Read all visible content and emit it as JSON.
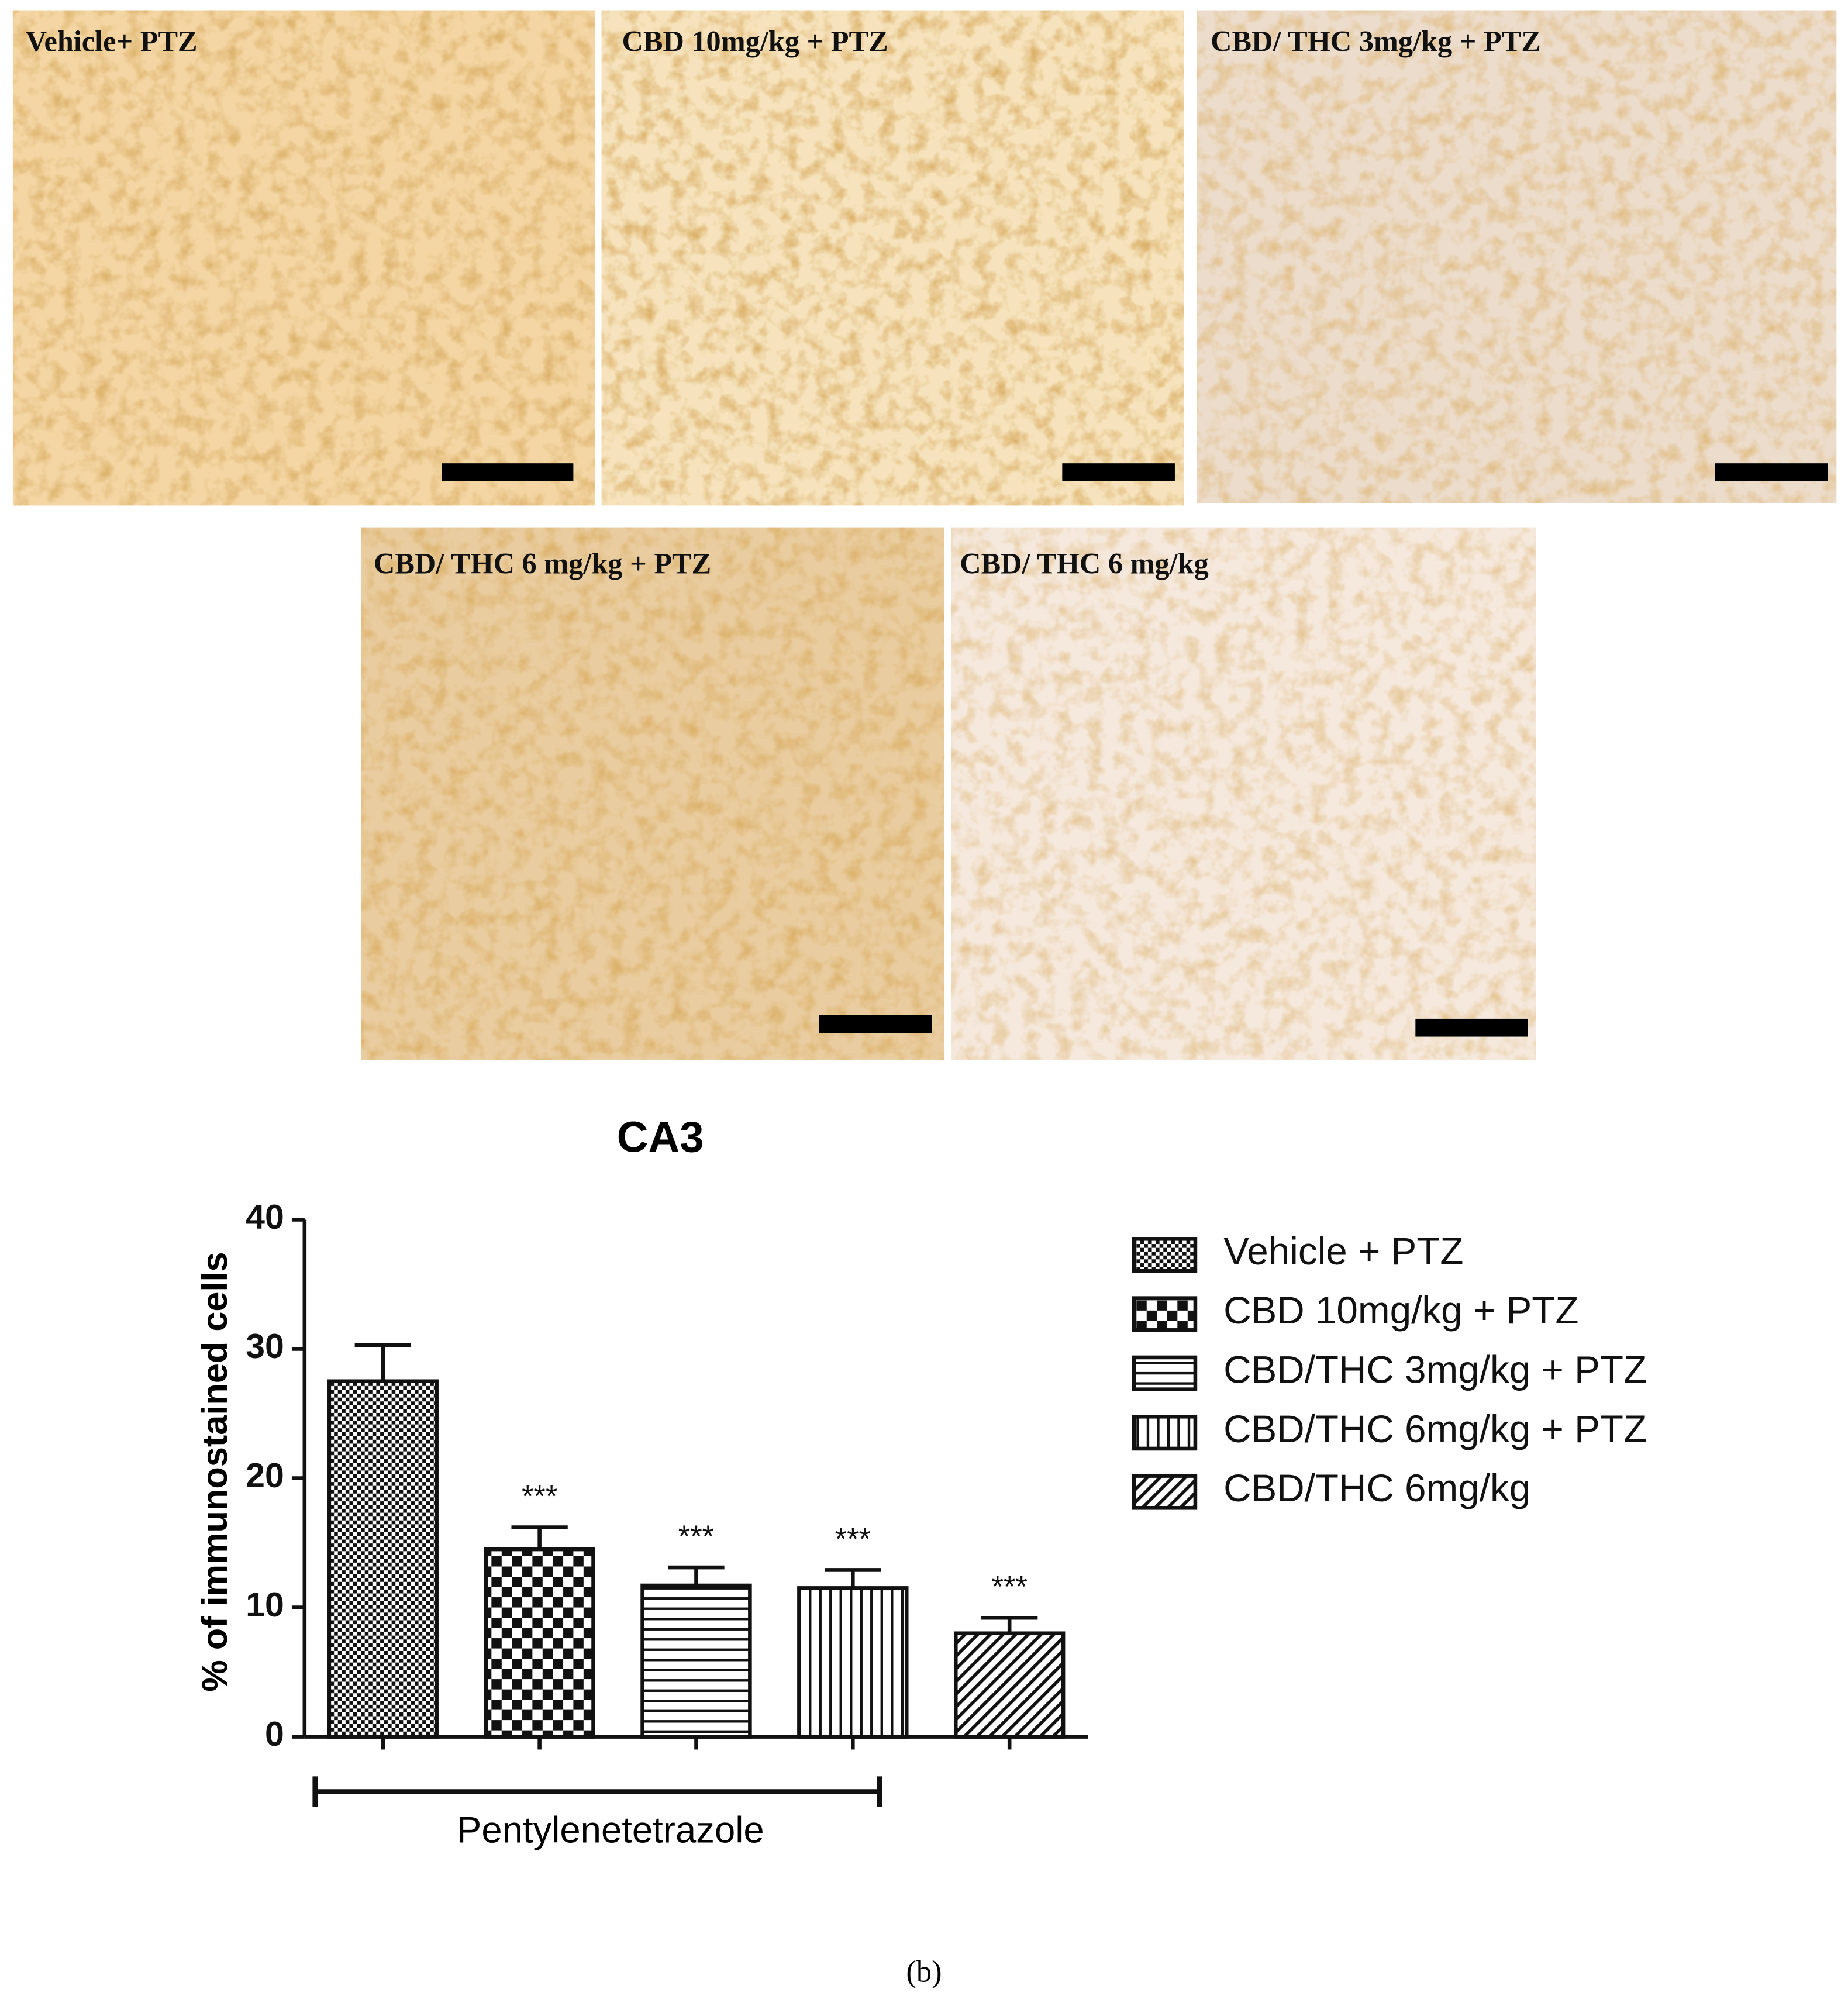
{
  "panels": [
    {
      "label": "Vehicle+ PTZ"
    },
    {
      "label": "CBD 10mg/kg + PTZ"
    },
    {
      "label": "CBD/ THC 3mg/kg + PTZ"
    },
    {
      "label": "CBD/ THC 6 mg/kg + PTZ"
    },
    {
      "label": "CBD/ THC 6 mg/kg"
    }
  ],
  "chart_data": {
    "type": "bar",
    "title": "CA3",
    "y_label": "% of immunostained cells",
    "categories": [
      null,
      null,
      null,
      null,
      null
    ],
    "values": [
      27.5,
      14.5,
      11.7,
      11.5,
      8.0
    ],
    "errors": [
      2.8,
      1.7,
      1.4,
      1.4,
      1.2
    ],
    "significance": [
      null,
      "***",
      "***",
      "***",
      "***"
    ],
    "legend": [
      "Vehicle + PTZ",
      "CBD 10mg/kg + PTZ",
      "CBD/THC 3mg/kg + PTZ",
      "CBD/THC 6mg/kg + PTZ",
      "CBD/THC 6mg/kg"
    ],
    "group_label": "Pentylenetetrazole",
    "color": "#111111",
    "ylim": [
      0,
      40
    ],
    "yticks": [
      0,
      10,
      20,
      30,
      40
    ]
  },
  "caption": "(b)"
}
